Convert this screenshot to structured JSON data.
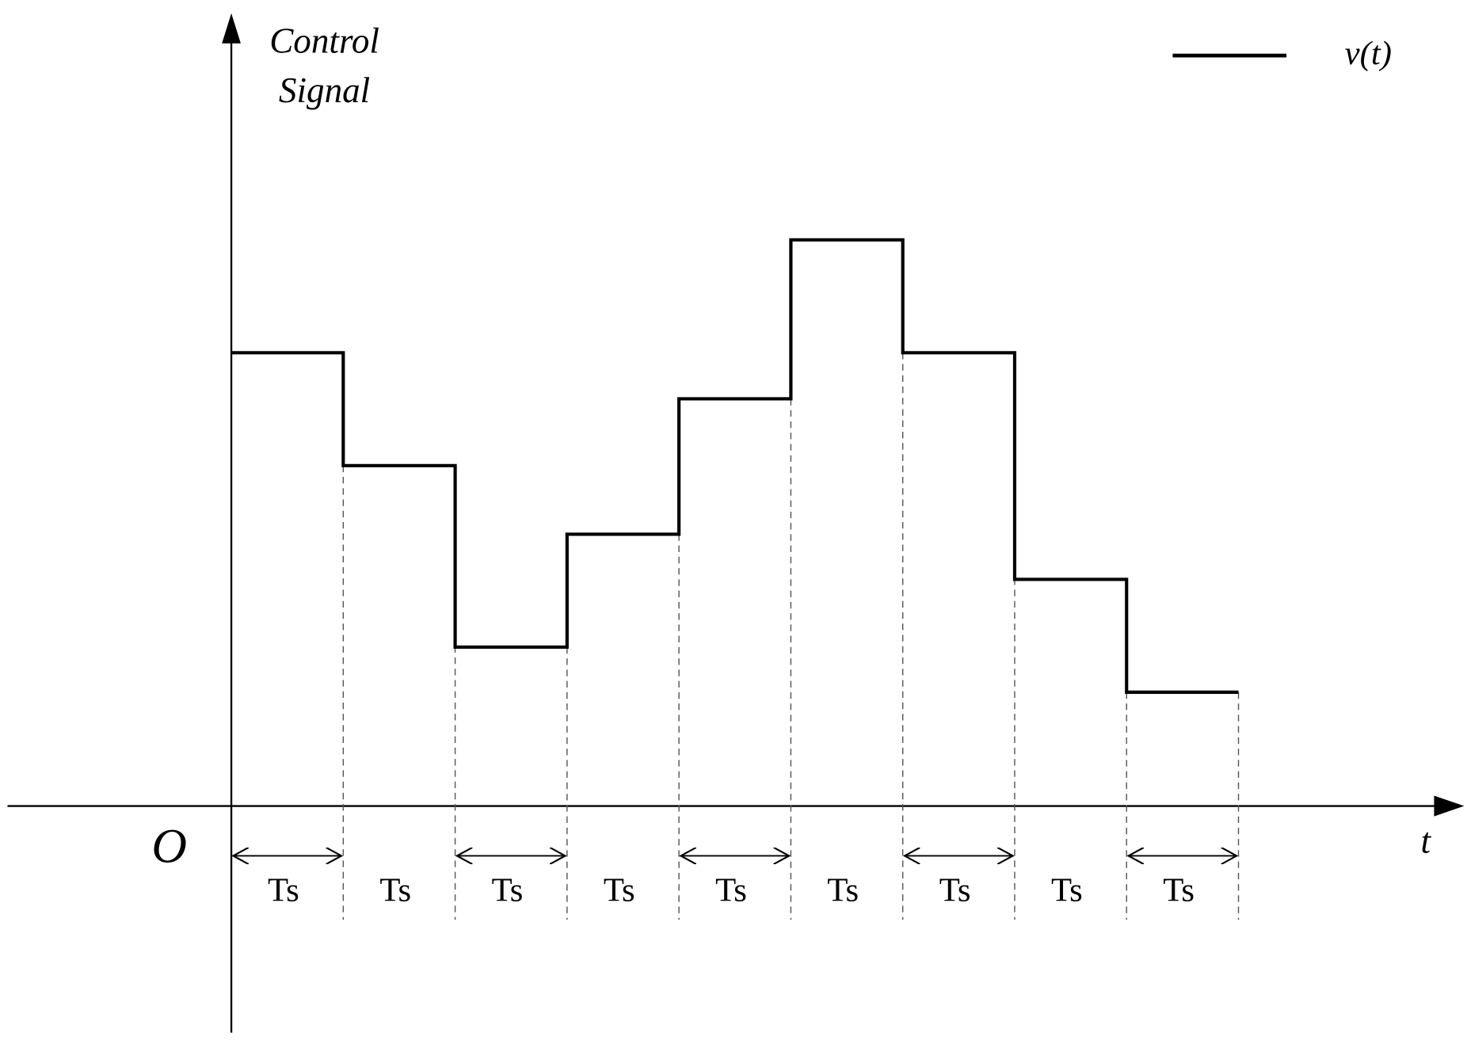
{
  "y_axis_label": [
    "Control",
    "Signal"
  ],
  "legend": "v(t)",
  "origin": "O",
  "x_axis_label": "t",
  "intervals": [
    "Ts",
    "Ts",
    "Ts",
    "Ts",
    "Ts",
    "Ts",
    "Ts",
    "Ts",
    "Ts"
  ]
}
